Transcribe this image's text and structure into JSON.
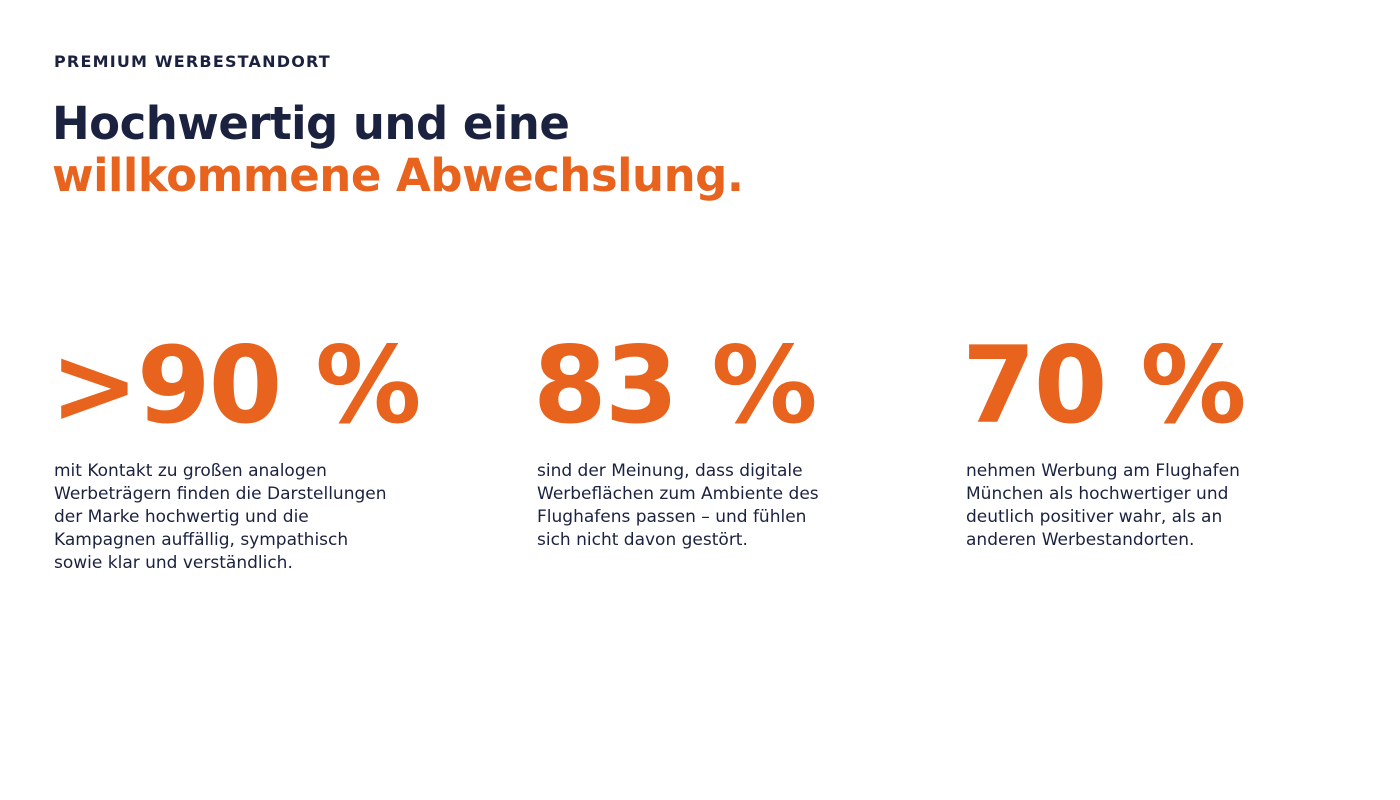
{
  "header": {
    "eyebrow": "PREMIUM WERBESTANDORT",
    "title_line1": "Hochwertig und eine",
    "title_line2": "willkommene Abwechslung."
  },
  "stats": [
    {
      "value": ">90 %",
      "description": [
        "mit Kontakt zu großen analogen",
        "Werbeträgern finden die Darstellungen",
        "der Marke hochwertig und die",
        "Kampagnen auffällig, sympathisch",
        "sowie klar und verständlich."
      ]
    },
    {
      "value": "83 %",
      "description": [
        "sind der Meinung, dass digitale",
        "Werbeflächen zum Ambiente des",
        "Flughafens passen – und fühlen",
        "sich nicht davon gestört."
      ]
    },
    {
      "value": "70 %",
      "description": [
        "nehmen Werbung am Flughafen",
        "München als hochwertiger und",
        "deutlich positiver wahr, als an",
        "anderen Werbestandorten."
      ]
    }
  ]
}
